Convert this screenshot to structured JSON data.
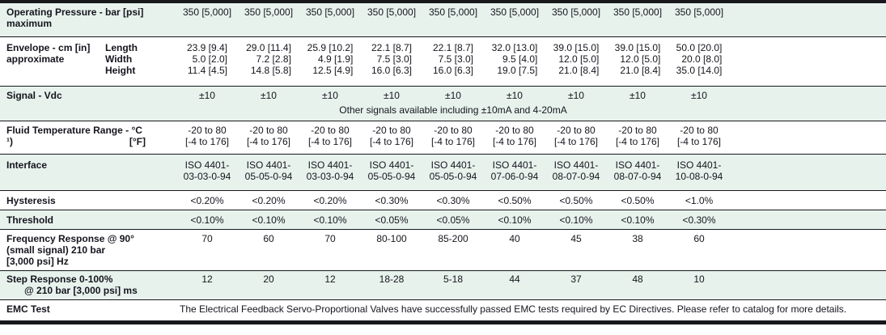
{
  "colors": {
    "row_shade": "#e7f2ec",
    "border": "#17171c",
    "text": "#15151e"
  },
  "spec_table": {
    "columns_count": 9,
    "rows": [
      {
        "id": "operating-pressure",
        "shaded": true,
        "label": {
          "lines": [
            "Operating Pressure - bar [psi]",
            "maximum"
          ]
        },
        "cells": [
          "350 [5,000]",
          "350 [5,000]",
          "350 [5,000]",
          "350 [5,000]",
          "350 [5,000]",
          "350 [5,000]",
          "350 [5,000]",
          "350 [5,000]",
          "350 [5,000]"
        ]
      },
      {
        "id": "envelope",
        "shaded": false,
        "multi_align": "right",
        "label": {
          "lines": [
            "Envelope - cm [in]",
            "approximate"
          ],
          "sub_lines": [
            "Length",
            "Width",
            "Height"
          ]
        },
        "cells": [
          [
            "23.9 [9.4]",
            "5.0 [2.0]",
            "11.4 [4.5]"
          ],
          [
            "29.0 [11.4]",
            "7.2 [2.8]",
            "14.8 [5.8]"
          ],
          [
            "25.9 [10.2]",
            "4.9 [1.9]",
            "12.5 [4.9]"
          ],
          [
            "22.1 [8.7]",
            "7.5 [3.0]",
            "16.0 [6.3]"
          ],
          [
            "22.1 [8.7]",
            "7.5 [3.0]",
            "16.0 [6.3]"
          ],
          [
            "32.0 [13.0]",
            "9.5 [4.0]",
            "19.0 [7.5]"
          ],
          [
            "39.0 [15.0]",
            "12.0 [5.0]",
            "21.0 [8.4]"
          ],
          [
            "39.0 [15.0]",
            "12.0 [5.0]",
            "21.0 [8.4]"
          ],
          [
            "50.0 [20.0]",
            "20.0 [8.0]",
            "35.0 [14.0]"
          ]
        ]
      },
      {
        "id": "signal",
        "shaded": true,
        "label": {
          "lines": [
            "Signal - Vdc"
          ]
        },
        "cells": [
          "±10",
          "±10",
          "±10",
          "±10",
          "±10",
          "±10",
          "±10",
          "±10",
          "±10"
        ],
        "note": "Other signals available including ±10mA and 4-20mA"
      },
      {
        "id": "fluid-temperature",
        "shaded": false,
        "label": {
          "lines": [
            "Fluid Temperature Range - °C"
          ],
          "footnote_line": {
            "left": "¹)",
            "right": "[°F]"
          }
        },
        "cells": [
          [
            "-20 to 80",
            "[-4 to 176]"
          ],
          [
            "-20 to 80",
            "[-4 to 176]"
          ],
          [
            "-20 to 80",
            "[-4 to 176]"
          ],
          [
            "-20 to 80",
            "[-4 to 176]"
          ],
          [
            "-20 to 80",
            "[-4 to 176]"
          ],
          [
            "-20 to 80",
            "[-4 to 176]"
          ],
          [
            "-20 to 80",
            "[-4 to 176]"
          ],
          [
            "-20 to 80",
            "[-4 to 176]"
          ],
          [
            "-20 to 80",
            "[-4 to 176]"
          ]
        ]
      },
      {
        "id": "interface",
        "shaded": true,
        "label": {
          "lines": [
            "Interface"
          ]
        },
        "cells": [
          [
            "ISO 4401-",
            "03-03-0-94"
          ],
          [
            "ISO 4401-",
            "05-05-0-94"
          ],
          [
            "ISO 4401-",
            "03-03-0-94"
          ],
          [
            "ISO 4401-",
            "05-05-0-94"
          ],
          [
            "ISO 4401-",
            "05-05-0-94"
          ],
          [
            "ISO 4401-",
            "07-06-0-94"
          ],
          [
            "ISO 4401-",
            "08-07-0-94"
          ],
          [
            "ISO 4401-",
            "08-07-0-94"
          ],
          [
            "ISO 4401-",
            "10-08-0-94"
          ]
        ]
      },
      {
        "id": "hysteresis",
        "shaded": false,
        "label": {
          "lines": [
            "Hysteresis"
          ]
        },
        "cells": [
          "<0.20%",
          "<0.20%",
          "<0.20%",
          "<0.30%",
          "<0.30%",
          "<0.50%",
          "<0.50%",
          "<0.50%",
          "<1.0%"
        ]
      },
      {
        "id": "threshold",
        "shaded": true,
        "label": {
          "lines": [
            "Threshold"
          ]
        },
        "cells": [
          "<0.10%",
          "<0.10%",
          "<0.10%",
          "<0.05%",
          "<0.05%",
          "<0.10%",
          "<0.10%",
          "<0.10%",
          "<0.30%"
        ]
      },
      {
        "id": "frequency-response",
        "shaded": false,
        "label": {
          "lines": [
            "Frequency Response @ 90°",
            "(small signal) 210 bar",
            "[3,000 psi] Hz"
          ]
        },
        "cells": [
          "70",
          "60",
          "70",
          "80-100",
          "85-200",
          "40",
          "45",
          "38",
          "60"
        ]
      },
      {
        "id": "step-response",
        "shaded": true,
        "label": {
          "lines": [
            "Step Response 0-100%",
            "@ 210 bar [3,000 psi] ms"
          ],
          "indent_lines": [
            1
          ]
        },
        "cells": [
          "12",
          "20",
          "12",
          "18-28",
          "5-18",
          "44",
          "37",
          "48",
          "10"
        ]
      },
      {
        "id": "emc-test",
        "shaded": false,
        "label": {
          "lines": [
            "EMC Test"
          ]
        },
        "span_text": "The Electrical Feedback Servo-Proportional Valves have successfully passed EMC tests required by EC Directives. Please refer to catalog for more details."
      }
    ]
  }
}
